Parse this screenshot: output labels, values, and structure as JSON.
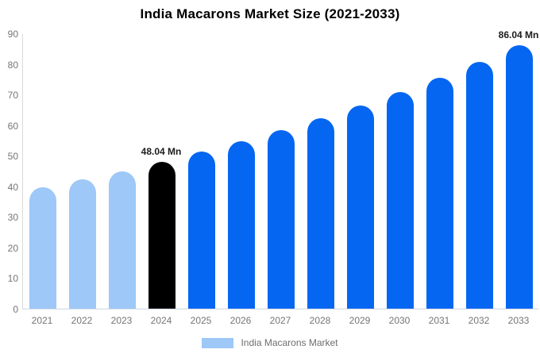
{
  "title": "India Macarons Market Size (2021-2033)",
  "legend": {
    "label": "India Macarons Market",
    "swatch_color": "#9DC8F7"
  },
  "colors": {
    "historical_bar": "#9DC8F7",
    "base_year_bar": "#000000",
    "forecast_bar": "#0566F2",
    "axis_line": "#d9d9d9",
    "baseline": "#ccd6e4",
    "tick_text": "#757575",
    "title_text": "#000000",
    "value_label_text": "#1c1c1c"
  },
  "chart_data": {
    "type": "bar",
    "title": "India Macarons Market Size (2021-2033)",
    "xlabel": "",
    "ylabel": "",
    "categories": [
      "2021",
      "2022",
      "2023",
      "2024",
      "2025",
      "2026",
      "2027",
      "2028",
      "2029",
      "2030",
      "2031",
      "2032",
      "2033"
    ],
    "values": [
      39.6,
      42.2,
      45.0,
      48.04,
      51.3,
      54.7,
      58.3,
      62.2,
      66.4,
      70.8,
      75.6,
      80.6,
      86.04
    ],
    "bar_colors": [
      "#9DC8F7",
      "#9DC8F7",
      "#9DC8F7",
      "#000000",
      "#0566F2",
      "#0566F2",
      "#0566F2",
      "#0566F2",
      "#0566F2",
      "#0566F2",
      "#0566F2",
      "#0566F2",
      "#0566F2"
    ],
    "annotations": [
      {
        "category": "2024",
        "text": "48.04 Mn"
      },
      {
        "category": "2033",
        "text": "86.04 Mn"
      }
    ],
    "ylim": [
      0,
      90
    ],
    "ytick_step": 10,
    "grid": false,
    "legend_position": "bottom",
    "legend_entries": [
      "India Macarons Market"
    ]
  }
}
